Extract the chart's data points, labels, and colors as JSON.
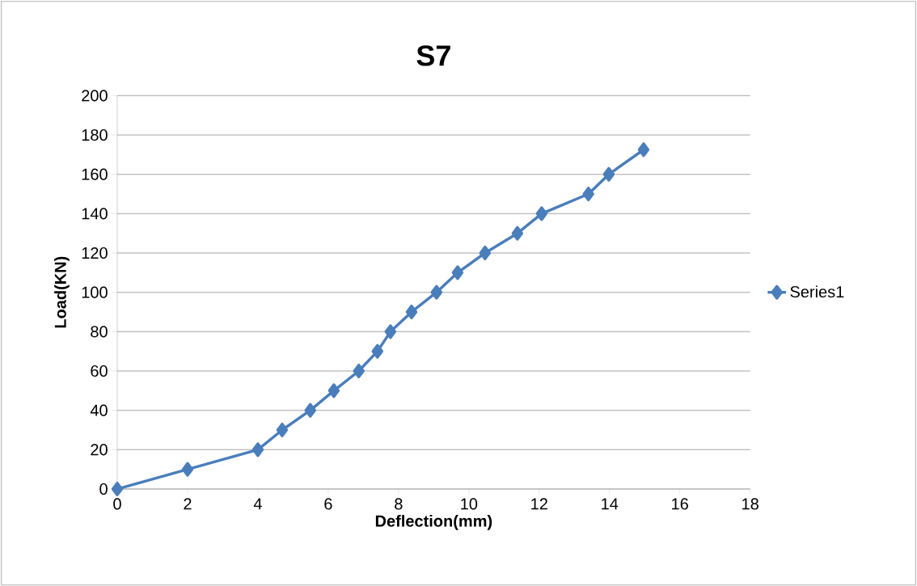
{
  "chart_data": {
    "type": "line",
    "title": "S7",
    "xlabel": "Deflection(mm)",
    "ylabel": "Load(KN)",
    "x": [
      0,
      2.0,
      4.0,
      4.69,
      5.49,
      6.16,
      6.87,
      7.4,
      7.77,
      8.37,
      9.08,
      9.68,
      10.46,
      11.38,
      12.07,
      13.4,
      13.98,
      14.97
    ],
    "series": [
      {
        "name": "Series1",
        "color": "#4a7ebb",
        "values": [
          0,
          10,
          20,
          30,
          40,
          50,
          60,
          70,
          80,
          90,
          100,
          110,
          120,
          130,
          140,
          150,
          160,
          172.5
        ]
      }
    ],
    "xlim": [
      0,
      18
    ],
    "xticks": [
      0,
      2,
      4,
      6,
      8,
      10,
      12,
      14,
      16,
      18
    ],
    "ylim": [
      0,
      200
    ],
    "yticks": [
      0,
      20,
      40,
      60,
      80,
      100,
      120,
      140,
      160,
      180,
      200
    ],
    "grid": "y",
    "legend": "right",
    "marker": "diamond",
    "line_style": "solid"
  }
}
